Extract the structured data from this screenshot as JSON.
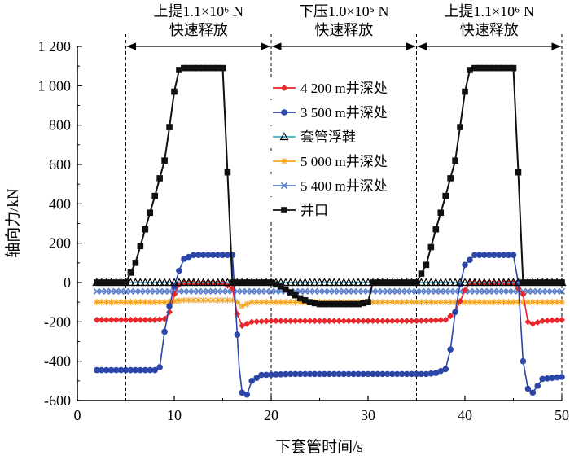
{
  "chart_data": {
    "type": "line",
    "xlabel": "下套管时间/s",
    "ylabel": "轴向力/kN",
    "xlim": [
      0,
      50
    ],
    "ylim": [
      -600,
      1200
    ],
    "x_ticks": [
      "0",
      "10",
      "20",
      "30",
      "40",
      "50"
    ],
    "y_ticks": [
      "-600",
      "-400",
      "-200",
      "0",
      "200",
      "400",
      "600",
      "800",
      "1 000",
      "1 200"
    ],
    "grid": false,
    "legend_position": "center",
    "phases": [
      {
        "x0": 5,
        "x1": 20,
        "line1": "上提1.1×10⁶ N",
        "line2": "快速释放"
      },
      {
        "x0": 20,
        "x1": 35,
        "line1": "下压1.0×10⁵ N",
        "line2": "快速释放"
      },
      {
        "x0": 35,
        "x1": 50,
        "line1": "上提1.1×10⁶ N",
        "line2": "快速释放"
      }
    ],
    "series": [
      {
        "name": "4 200 m井深处",
        "color": "#e8262b",
        "marker": "diamond",
        "points": [
          [
            2,
            -190
          ],
          [
            8,
            -190
          ],
          [
            9,
            -185
          ],
          [
            9.5,
            -150
          ],
          [
            10,
            -60
          ],
          [
            10.5,
            -10
          ],
          [
            11,
            0
          ],
          [
            15,
            0
          ],
          [
            16,
            -30
          ],
          [
            16.5,
            -160
          ],
          [
            17,
            -220
          ],
          [
            18,
            -200
          ],
          [
            20,
            -195
          ],
          [
            35,
            -195
          ],
          [
            38,
            -190
          ],
          [
            39,
            -150
          ],
          [
            40,
            -40
          ],
          [
            40.5,
            0
          ],
          [
            45,
            0
          ],
          [
            46,
            -60
          ],
          [
            46.5,
            -200
          ],
          [
            47,
            -210
          ],
          [
            48,
            -195
          ],
          [
            50,
            -190
          ]
        ]
      },
      {
        "name": "3 500 m井深处",
        "color": "#2b46a8",
        "marker": "circle",
        "points": [
          [
            2,
            -445
          ],
          [
            8,
            -445
          ],
          [
            8.5,
            -430
          ],
          [
            9,
            -250
          ],
          [
            9.5,
            -120
          ],
          [
            10,
            -20
          ],
          [
            10.5,
            60
          ],
          [
            11,
            120
          ],
          [
            12,
            140
          ],
          [
            16,
            140
          ],
          [
            16.3,
            -100
          ],
          [
            16.7,
            -430
          ],
          [
            17,
            -560
          ],
          [
            17.5,
            -570
          ],
          [
            18,
            -500
          ],
          [
            19,
            -470
          ],
          [
            22,
            -465
          ],
          [
            35,
            -465
          ],
          [
            36,
            -465
          ],
          [
            37,
            -460
          ],
          [
            38,
            -440
          ],
          [
            38.5,
            -340
          ],
          [
            39,
            -150
          ],
          [
            39.5,
            -10
          ],
          [
            40,
            90
          ],
          [
            41,
            140
          ],
          [
            45,
            140
          ],
          [
            45.5,
            0
          ],
          [
            46,
            -400
          ],
          [
            46.5,
            -540
          ],
          [
            47,
            -560
          ],
          [
            48,
            -490
          ],
          [
            50,
            -480
          ]
        ]
      },
      {
        "name": "套管浮鞋",
        "color": "#3ab8d0",
        "marker": "triangle",
        "points": [
          [
            2,
            0
          ],
          [
            50,
            0
          ]
        ]
      },
      {
        "name": "5 000 m井深处",
        "color": "#f5a623",
        "marker": "star",
        "points": [
          [
            2,
            -100
          ],
          [
            9,
            -100
          ],
          [
            10,
            -95
          ],
          [
            11,
            -90
          ],
          [
            16,
            -90
          ],
          [
            16.5,
            -100
          ],
          [
            17,
            -120
          ],
          [
            18,
            -100
          ],
          [
            50,
            -100
          ]
        ]
      },
      {
        "name": "5 400 m井深处",
        "color": "#5a7fc8",
        "marker": "x",
        "points": [
          [
            2,
            -45
          ],
          [
            50,
            -45
          ]
        ]
      },
      {
        "name": "井口",
        "color": "#111111",
        "marker": "square",
        "points": [
          [
            2,
            0
          ],
          [
            5,
            0
          ],
          [
            6,
            100
          ],
          [
            7,
            270
          ],
          [
            8,
            440
          ],
          [
            9,
            620
          ],
          [
            9.5,
            790
          ],
          [
            10,
            970
          ],
          [
            10.5,
            1080
          ],
          [
            11,
            1090
          ],
          [
            15,
            1090
          ],
          [
            15.5,
            560
          ],
          [
            16,
            0
          ],
          [
            20,
            0
          ],
          [
            21,
            -20
          ],
          [
            22,
            -50
          ],
          [
            23,
            -80
          ],
          [
            24,
            -100
          ],
          [
            25,
            -110
          ],
          [
            29,
            -110
          ],
          [
            30,
            -100
          ],
          [
            30.5,
            0
          ],
          [
            35,
            0
          ],
          [
            36,
            90
          ],
          [
            37,
            270
          ],
          [
            38,
            440
          ],
          [
            39,
            620
          ],
          [
            39.5,
            790
          ],
          [
            40,
            970
          ],
          [
            40.5,
            1080
          ],
          [
            41,
            1090
          ],
          [
            45,
            1090
          ],
          [
            45.5,
            560
          ],
          [
            46,
            0
          ],
          [
            50,
            0
          ]
        ]
      }
    ]
  }
}
